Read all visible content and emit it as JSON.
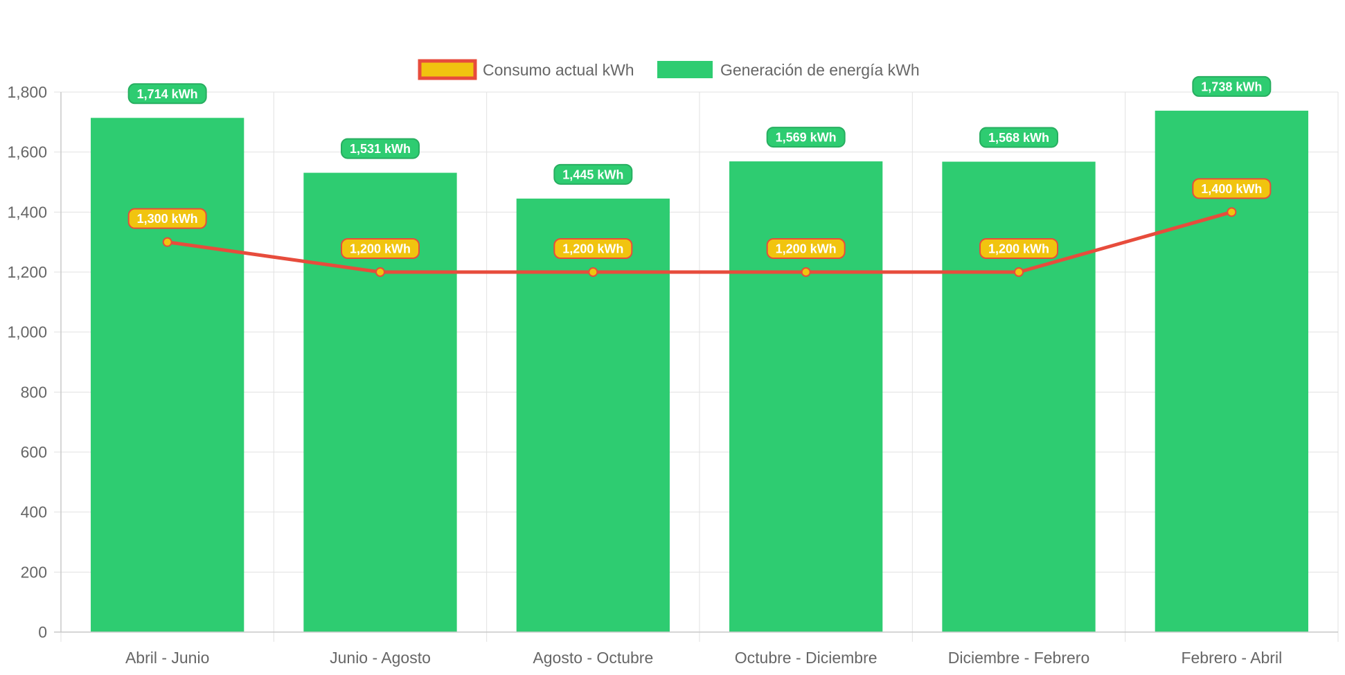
{
  "chart_data": {
    "type": "bar",
    "categories": [
      "Abril - Junio",
      "Junio - Agosto",
      "Agosto - Octubre",
      "Octubre - Diciembre",
      "Diciembre - Febrero",
      "Febrero - Abril"
    ],
    "series": [
      {
        "name": "Consumo actual kWh",
        "type": "line",
        "values": [
          1300,
          1200,
          1200,
          1200,
          1200,
          1400
        ],
        "labels": [
          "1,300 kWh",
          "1,200 kWh",
          "1,200 kWh",
          "1,200 kWh",
          "1,200 kWh",
          "1,400 kWh"
        ],
        "line_color": "#e74c3c",
        "fill_color": "#f1c40f"
      },
      {
        "name": "Generación de energía kWh",
        "type": "bar",
        "values": [
          1714,
          1531,
          1445,
          1569,
          1568,
          1738
        ],
        "labels": [
          "1,714 kWh",
          "1,531 kWh",
          "1,445 kWh",
          "1,569 kWh",
          "1,568 kWh",
          "1,738 kWh"
        ],
        "fill_color": "#2ecc71",
        "border_color": "#27ae60"
      }
    ],
    "ylim": [
      0,
      1800
    ],
    "yticks": [
      "0",
      "200",
      "400",
      "600",
      "800",
      "1,000",
      "1,200",
      "1,400",
      "1,600",
      "1,800"
    ],
    "ytick_values": [
      0,
      200,
      400,
      600,
      800,
      1000,
      1200,
      1400,
      1600,
      1800
    ],
    "grid": true,
    "legend_position": "top"
  }
}
